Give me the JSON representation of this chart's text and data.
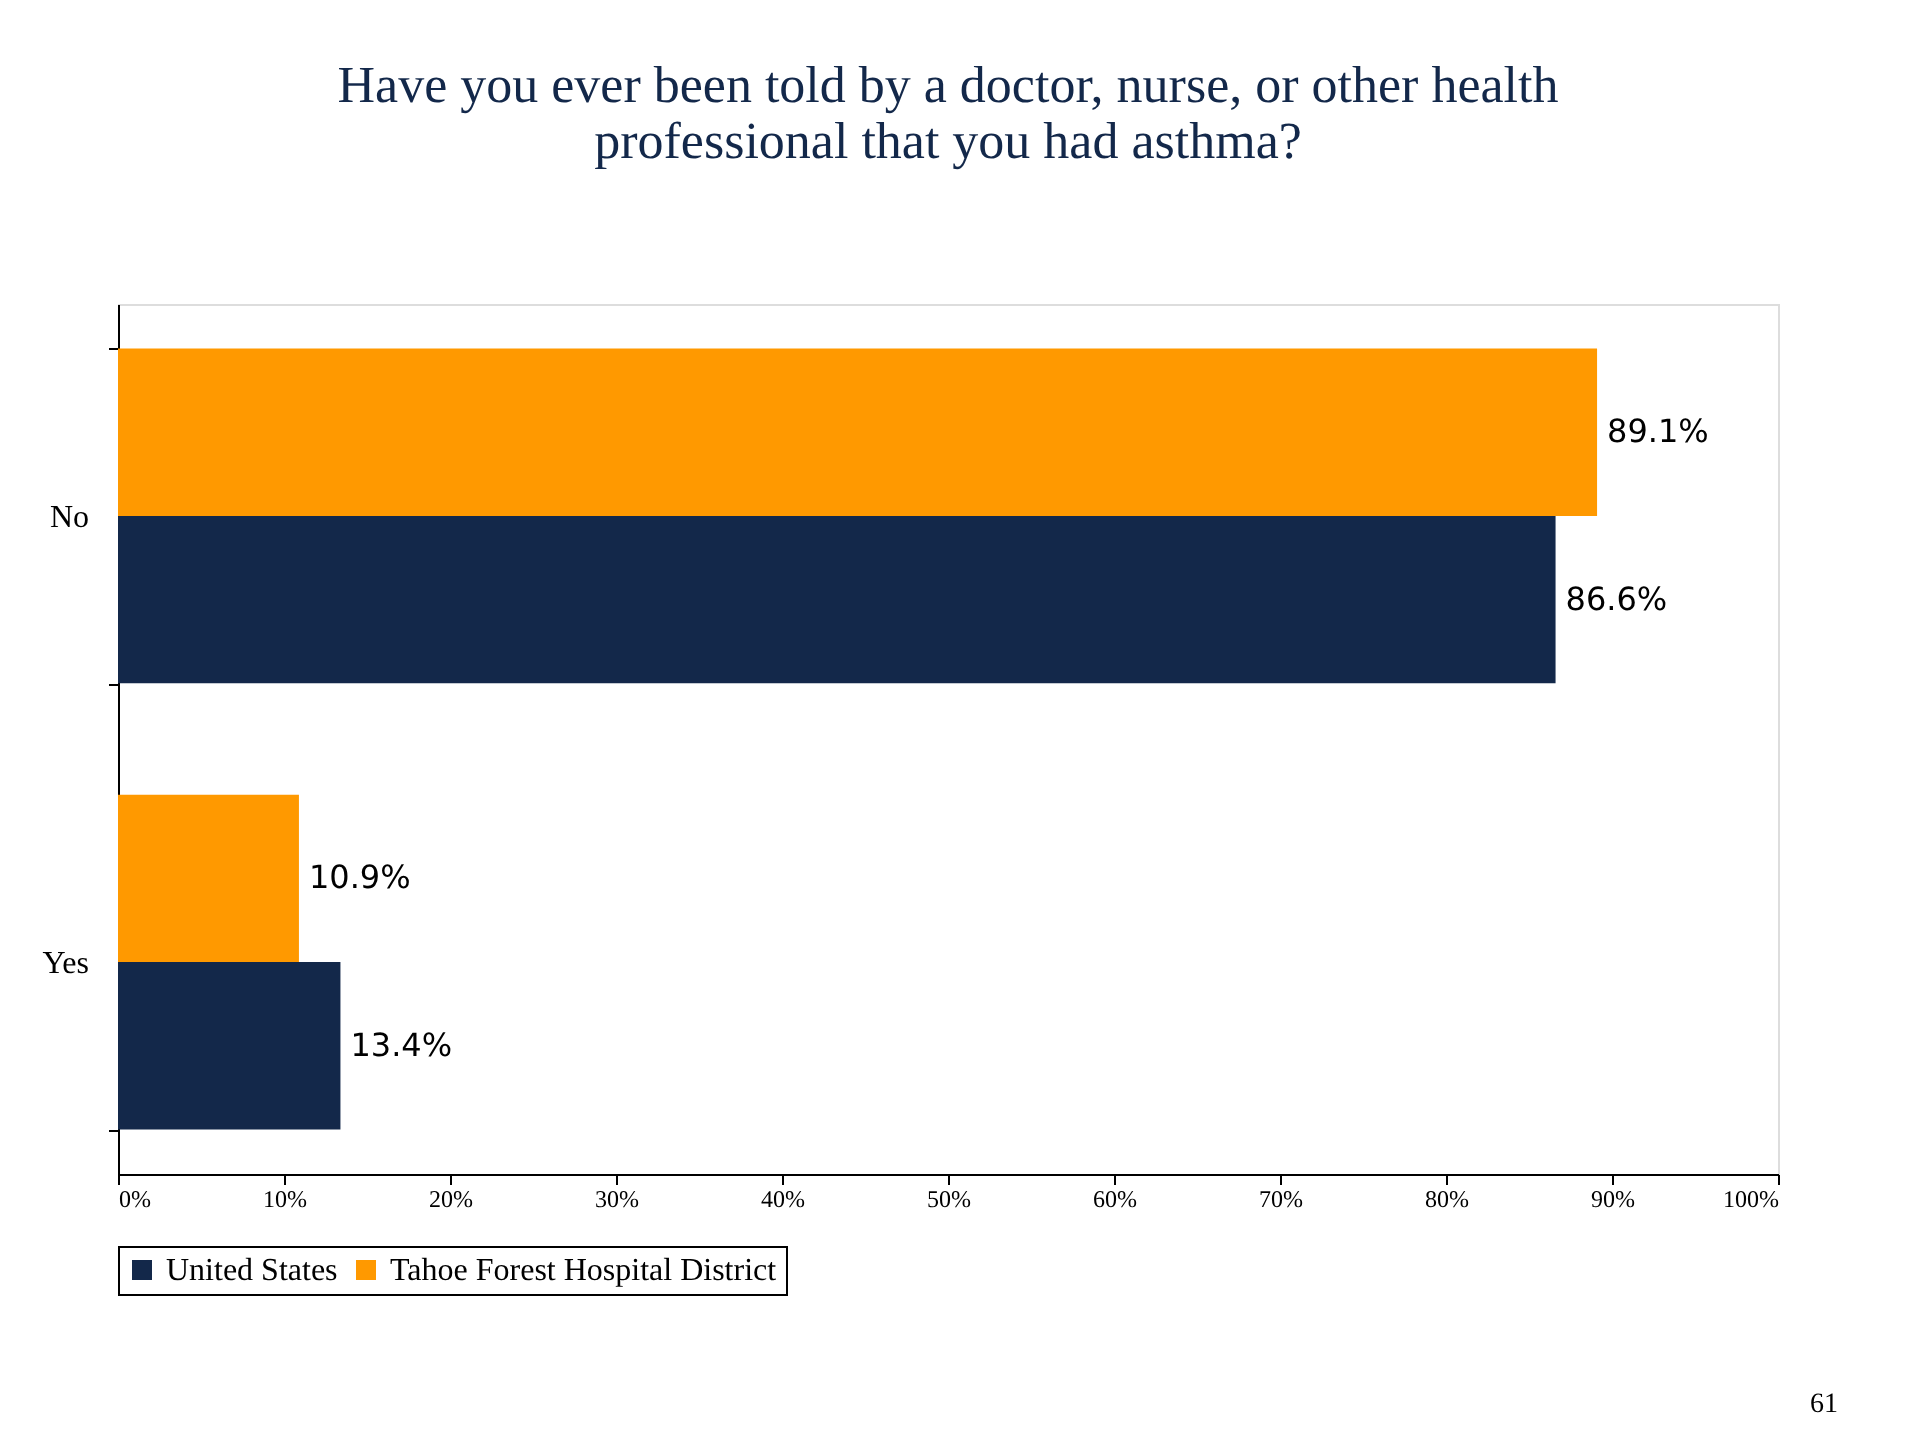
{
  "chart_data": {
    "type": "bar",
    "orientation": "horizontal",
    "title": "Have you ever been told by a doctor, nurse, or other health professional that you had asthma?",
    "categories": [
      "No",
      "Yes"
    ],
    "series": [
      {
        "name": "United States",
        "color": "#13284a",
        "values": [
          86.6,
          13.4
        ],
        "value_labels": [
          "86.6%",
          "13.4%"
        ]
      },
      {
        "name": "Tahoe Forest Hospital District",
        "color": "#ff9900",
        "values": [
          89.1,
          10.9
        ],
        "value_labels": [
          "89.1%",
          "10.9%"
        ]
      }
    ],
    "xlim": [
      0,
      100
    ],
    "xticks": [
      {
        "value": 0,
        "label": "0%"
      },
      {
        "value": 10,
        "label": "10%"
      },
      {
        "value": 20,
        "label": "20%"
      },
      {
        "value": 30,
        "label": "30%"
      },
      {
        "value": 40,
        "label": "40%"
      },
      {
        "value": 50,
        "label": "50%"
      },
      {
        "value": 60,
        "label": "60%"
      },
      {
        "value": 70,
        "label": "70%"
      },
      {
        "value": 80,
        "label": "80%"
      },
      {
        "value": 90,
        "label": "90%"
      },
      {
        "value": 100,
        "label": "100%"
      }
    ],
    "grid": false,
    "legend": "bottom",
    "annotations": [
      "61"
    ]
  }
}
